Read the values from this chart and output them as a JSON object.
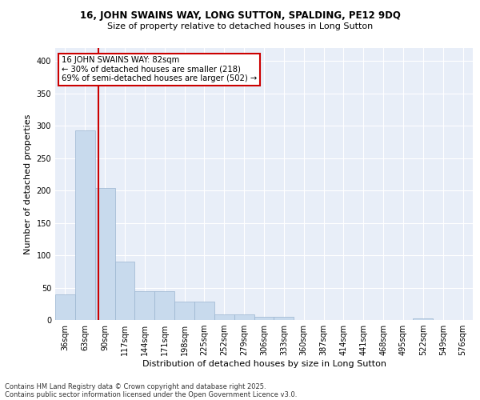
{
  "title_line1": "16, JOHN SWAINS WAY, LONG SUTTON, SPALDING, PE12 9DQ",
  "title_line2": "Size of property relative to detached houses in Long Sutton",
  "xlabel": "Distribution of detached houses by size in Long Sutton",
  "ylabel": "Number of detached properties",
  "categories": [
    "36sqm",
    "63sqm",
    "90sqm",
    "117sqm",
    "144sqm",
    "171sqm",
    "198sqm",
    "225sqm",
    "252sqm",
    "279sqm",
    "306sqm",
    "333sqm",
    "360sqm",
    "387sqm",
    "414sqm",
    "441sqm",
    "468sqm",
    "495sqm",
    "522sqm",
    "549sqm",
    "576sqm"
  ],
  "values": [
    40,
    293,
    204,
    90,
    44,
    44,
    29,
    29,
    9,
    9,
    5,
    5,
    0,
    0,
    0,
    0,
    0,
    0,
    3,
    0,
    0
  ],
  "bar_color": "#c8daed",
  "bar_edge_color": "#9ab5d0",
  "vline_x": 1.67,
  "vline_color": "#cc0000",
  "annotation_text": "16 JOHN SWAINS WAY: 82sqm\n← 30% of detached houses are smaller (218)\n69% of semi-detached houses are larger (502) →",
  "annotation_box_color": "#cc0000",
  "background_color": "#e8eef8",
  "grid_color": "#ffffff",
  "footer_line1": "Contains HM Land Registry data © Crown copyright and database right 2025.",
  "footer_line2": "Contains public sector information licensed under the Open Government Licence v3.0.",
  "ylim": [
    0,
    420
  ],
  "yticks": [
    0,
    50,
    100,
    150,
    200,
    250,
    300,
    350,
    400
  ],
  "title_fontsize": 8.5,
  "subtitle_fontsize": 8.0,
  "xlabel_fontsize": 8.0,
  "ylabel_fontsize": 8.0,
  "tick_fontsize": 7.0,
  "footer_fontsize": 6.0
}
